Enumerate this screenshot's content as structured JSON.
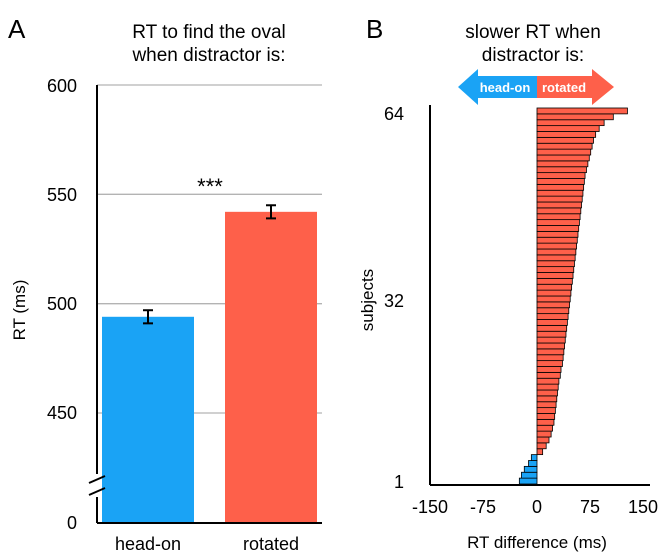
{
  "chart_data": [
    {
      "panel": "A",
      "type": "bar",
      "title_lines": [
        "RT to find the oval",
        "when distractor is:"
      ],
      "xlabel": "",
      "ylabel": "RT (ms)",
      "ylim": [
        450,
        600
      ],
      "axis_break": true,
      "yticks": [
        "600",
        "550",
        "500",
        "450",
        "0"
      ],
      "categories": [
        "head-on",
        "rotated"
      ],
      "values": [
        494,
        542
      ],
      "error": [
        3,
        3
      ],
      "colors": [
        "#1aa3f5",
        "#fe604a"
      ],
      "significance": "***",
      "grid": "horizontal"
    },
    {
      "panel": "B",
      "type": "bar",
      "orientation": "horizontal",
      "title_lines": [
        "slower RT when",
        "distractor is:"
      ],
      "arrow_labels": [
        "head-on",
        "rotated"
      ],
      "xlabel": "RT difference (ms)",
      "ylabel": "subjects",
      "xlim": [
        -150,
        150
      ],
      "xticks": [
        "-150",
        "-75",
        "0",
        "75",
        "150"
      ],
      "yticks": [
        "64",
        "32",
        "1"
      ],
      "colors": {
        "negative": "#1aa3f5",
        "positive": "#fe604a"
      },
      "values": [
        -25,
        -22,
        -18,
        -12,
        -8,
        8,
        13,
        17,
        20,
        22,
        24,
        25,
        26,
        27,
        28,
        29,
        30,
        31,
        33,
        34,
        36,
        37,
        38,
        39,
        40,
        41,
        42,
        43,
        44,
        45,
        46,
        47,
        48,
        49,
        50,
        51,
        52,
        53,
        54,
        55,
        56,
        57,
        58,
        59,
        60,
        61,
        62,
        63,
        64,
        65,
        66,
        67,
        68,
        70,
        72,
        74,
        76,
        78,
        80,
        83,
        88,
        95,
        108,
        128
      ]
    }
  ]
}
